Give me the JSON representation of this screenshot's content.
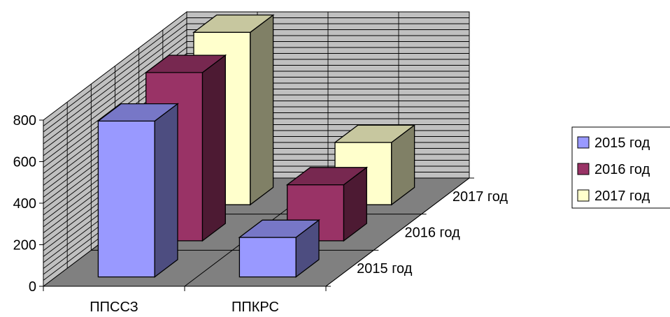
{
  "chart_data": {
    "type": "bar",
    "subtype": "3d-column",
    "title": "",
    "xlabel": "",
    "ylabel": "",
    "categories": [
      "ППССЗ",
      "ППКРС"
    ],
    "depth_categories": [
      "2015 год",
      "2016 год",
      "2017 год"
    ],
    "series": [
      {
        "name": "2015 год",
        "values": [
          750,
          190
        ],
        "color": "#9999FF"
      },
      {
        "name": "2016 год",
        "values": [
          810,
          270
        ],
        "color": "#993366"
      },
      {
        "name": "2017 год",
        "values": [
          830,
          300
        ],
        "color": "#FFFFCC"
      }
    ],
    "ylim": [
      0,
      800
    ],
    "yticks": [
      0,
      200,
      400,
      600,
      800
    ],
    "grid": true,
    "legend": {
      "placement": "right"
    }
  }
}
